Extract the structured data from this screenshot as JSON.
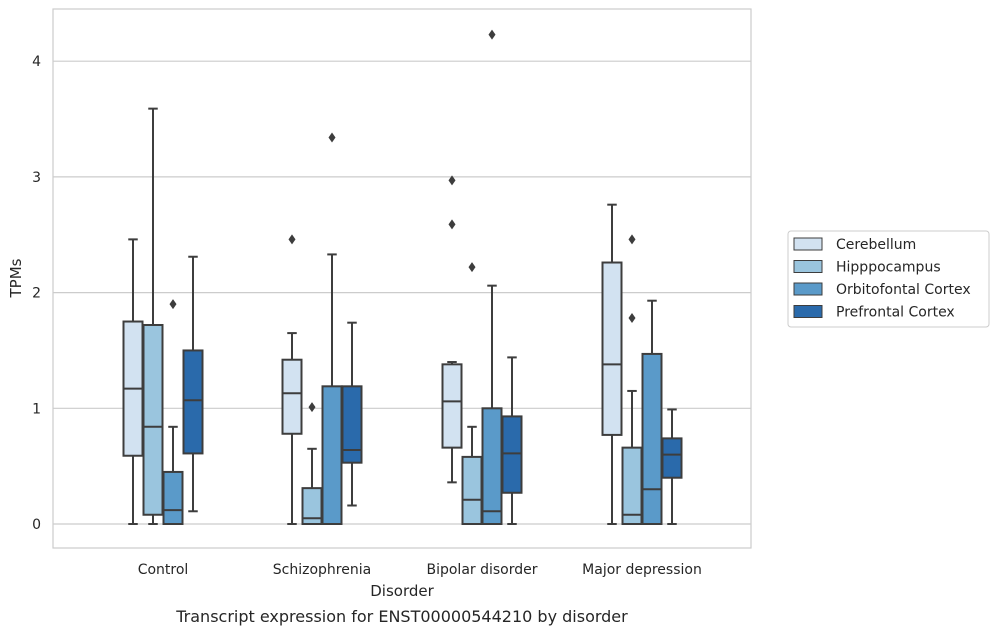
{
  "chart_data": {
    "type": "box",
    "title": "",
    "caption": "Transcript expression for ENST00000544210 by disorder",
    "xlabel": "Disorder",
    "ylabel": "TPMs",
    "ylim": [
      -0.2,
      4.45
    ],
    "yticks": [
      0,
      1,
      2,
      3,
      4
    ],
    "grid": "horizontal",
    "legend_position": "right",
    "categories": [
      "Control",
      "Schizophrenia",
      "Bipolar disorder",
      "Major depression"
    ],
    "series": [
      {
        "name": "Cerebellum",
        "color": "#d2e2f1",
        "boxes": [
          {
            "min": 0,
            "q1": 0.59,
            "median": 1.17,
            "q3": 1.75,
            "max": 2.46,
            "outliers": []
          },
          {
            "min": 0,
            "q1": 0.78,
            "median": 1.13,
            "q3": 1.42,
            "max": 1.65,
            "outliers": [
              2.46
            ]
          },
          {
            "min": 0.36,
            "q1": 0.66,
            "median": 1.06,
            "q3": 1.38,
            "max": 1.4,
            "outliers": [
              2.59,
              2.97
            ]
          },
          {
            "min": 0,
            "q1": 0.77,
            "median": 1.38,
            "q3": 2.26,
            "max": 2.76,
            "outliers": []
          }
        ]
      },
      {
        "name": "Hipppocampus",
        "color": "#9ac5de",
        "boxes": [
          {
            "min": 0,
            "q1": 0.08,
            "median": 0.84,
            "q3": 1.72,
            "max": 3.59,
            "outliers": []
          },
          {
            "min": 0,
            "q1": 0,
            "median": 0.05,
            "q3": 0.31,
            "max": 0.65,
            "outliers": [
              1.01
            ]
          },
          {
            "min": 0,
            "q1": 0,
            "median": 0.21,
            "q3": 0.58,
            "max": 0.84,
            "outliers": [
              2.22
            ]
          },
          {
            "min": 0,
            "q1": 0,
            "median": 0.08,
            "q3": 0.66,
            "max": 1.15,
            "outliers": [
              1.78,
              2.46
            ]
          }
        ]
      },
      {
        "name": "Orbitofontal Cortex",
        "color": "#5a9ac9",
        "boxes": [
          {
            "min": 0,
            "q1": 0,
            "median": 0.12,
            "q3": 0.45,
            "max": 0.84,
            "outliers": [
              1.9
            ]
          },
          {
            "min": 0,
            "q1": 0,
            "median": 0,
            "q3": 1.19,
            "max": 2.33,
            "outliers": [
              3.34
            ]
          },
          {
            "min": 0,
            "q1": 0,
            "median": 0.11,
            "q3": 1.0,
            "max": 2.06,
            "outliers": [
              4.23
            ]
          },
          {
            "min": 0,
            "q1": 0,
            "median": 0.3,
            "q3": 1.47,
            "max": 1.93,
            "outliers": []
          }
        ]
      },
      {
        "name": "Prefrontal Cortex",
        "color": "#2a6aab",
        "boxes": [
          {
            "min": 0.11,
            "q1": 0.61,
            "median": 1.07,
            "q3": 1.5,
            "max": 2.31,
            "outliers": []
          },
          {
            "min": 0.16,
            "q1": 0.53,
            "median": 0.64,
            "q3": 1.19,
            "max": 1.74,
            "outliers": []
          },
          {
            "min": 0,
            "q1": 0.27,
            "median": 0.61,
            "q3": 0.93,
            "max": 1.44,
            "outliers": []
          },
          {
            "min": 0,
            "q1": 0.4,
            "median": 0.6,
            "q3": 0.74,
            "max": 0.99,
            "outliers": []
          }
        ]
      }
    ]
  }
}
